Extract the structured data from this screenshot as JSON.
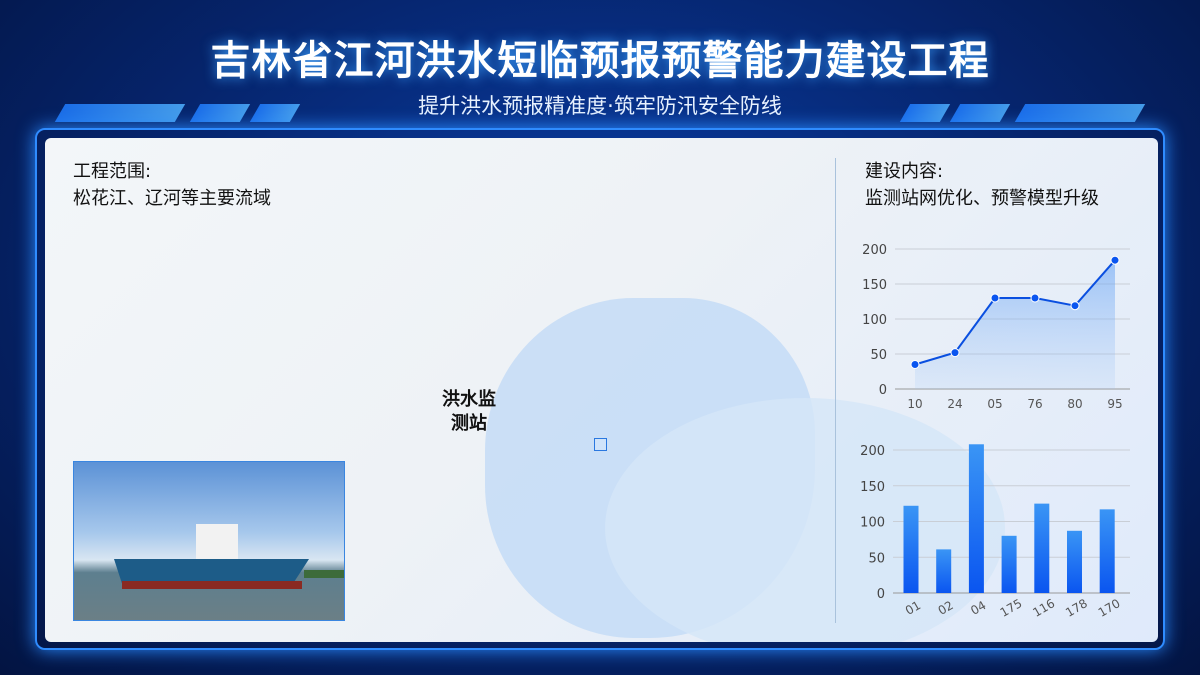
{
  "header": {
    "title": "吉林省江河洪水短临预报预警能力建设工程",
    "subtitle": "提升洪水预报精准度·筑牢防汛安全防线"
  },
  "left": {
    "heading": "工程范围:",
    "text": "松花江、辽河等主要流域"
  },
  "map": {
    "station_label": "洪水监测站"
  },
  "right": {
    "heading": "建设内容:",
    "text": "监测站网优化、预警模型升级"
  },
  "colors": {
    "accent": "#1f6bff",
    "frame": "#2f8cff",
    "background": "#06256e"
  },
  "chart_data": [
    {
      "type": "line",
      "categories": [
        "10",
        "24",
        "05",
        "76",
        "80",
        "95"
      ],
      "values": [
        35,
        52,
        130,
        130,
        119,
        184
      ],
      "ylim": [
        0,
        200
      ],
      "yticks": [
        0,
        50,
        100,
        150,
        200
      ],
      "grid": true,
      "area_fill": true
    },
    {
      "type": "bar",
      "categories": [
        "01",
        "02",
        "04",
        "175",
        "116",
        "178",
        "170"
      ],
      "values": [
        122,
        61,
        208,
        80,
        125,
        87,
        117
      ],
      "ylim": [
        0,
        200
      ],
      "yticks": [
        0,
        50,
        100,
        150,
        200
      ],
      "grid": true
    }
  ]
}
